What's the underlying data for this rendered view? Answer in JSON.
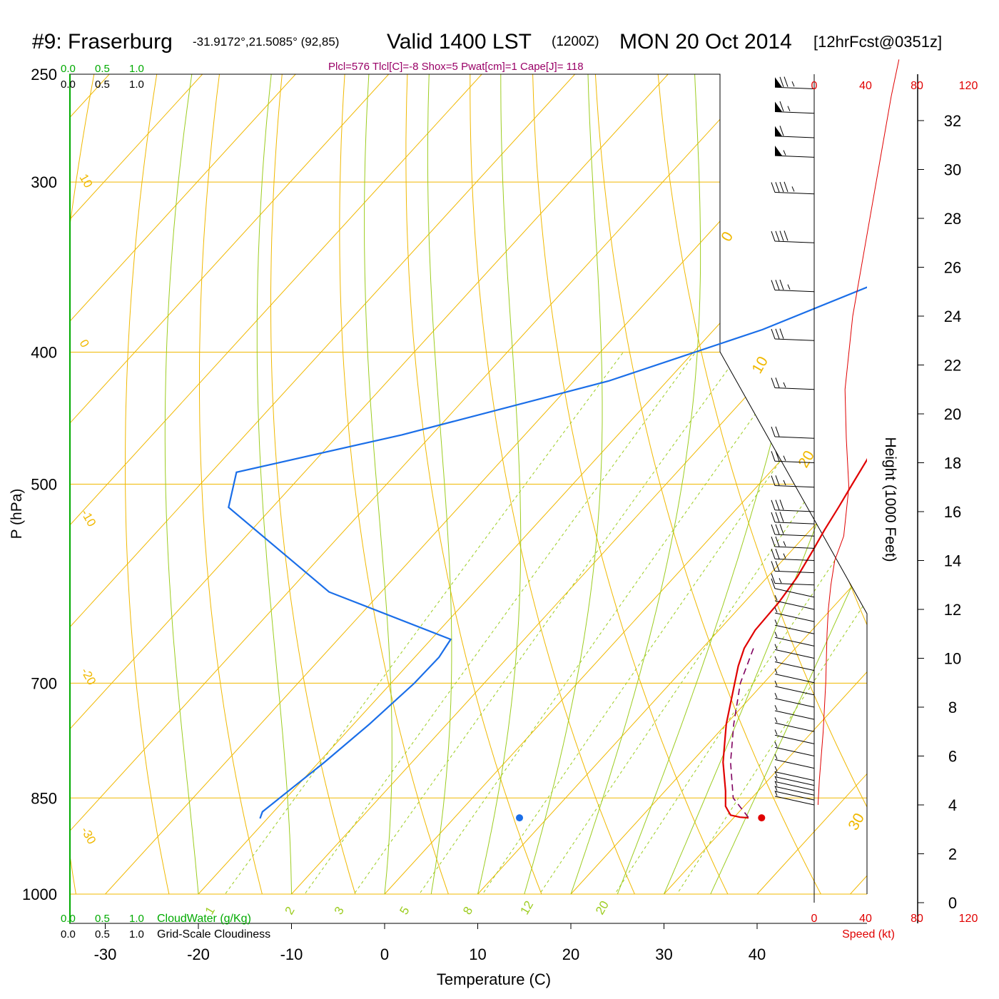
{
  "header": {
    "station": "#9: Fraserburg",
    "coords": "-31.9172°,21.5085° (92,85)",
    "valid": "Valid 1400 LST",
    "utc": "(1200Z)",
    "date": "MON 20 Oct 2014",
    "fcst": "[12hrFcst@0351z]",
    "indices": "Plcl=576 Tlcl[C]=-8 Shox=5 Pwat[cm]=1 Cape[J]= 118"
  },
  "colors": {
    "isobar": "#f0b800",
    "adiabat": "#9ccc1f",
    "mixing": "#9ccc1f",
    "temperature": "#e00000",
    "dewpoint": "#1a6ee8",
    "parcel": "#800060",
    "cloud_axis": "#00aa00",
    "speed": "#e00000",
    "indices": "#990066"
  },
  "chart_data": {
    "type": "line",
    "title": "#9: Fraserburg",
    "xlabel": "Temperature (C)",
    "ylabel": "P (hPa)",
    "xlim": [
      -34,
      46
    ],
    "ylim": [
      1000,
      250
    ],
    "y_scale": "log",
    "x_ticks": [
      "-30",
      "-20",
      "-10",
      "0",
      "10",
      "20",
      "30",
      "40"
    ],
    "pressure_levels": [
      "250",
      "300",
      "400",
      "500",
      "700",
      "850",
      "1000"
    ],
    "series": [
      {
        "role": "temperature",
        "points": [
          [
            250,
            -1.9
          ],
          [
            262,
            -1.8
          ],
          [
            275,
            -1.6
          ],
          [
            290,
            -1.0
          ],
          [
            300,
            -0.5
          ],
          [
            320,
            0.6
          ],
          [
            340,
            1.7
          ],
          [
            360,
            2.8
          ],
          [
            380,
            3.8
          ],
          [
            400,
            4.8
          ],
          [
            420,
            5.9
          ],
          [
            440,
            7.0
          ],
          [
            460,
            8.1
          ],
          [
            480,
            9.2
          ],
          [
            500,
            10.0
          ],
          [
            520,
            10.8
          ],
          [
            540,
            11.5
          ],
          [
            560,
            12.3
          ],
          [
            585,
            13.2
          ],
          [
            610,
            13.7
          ],
          [
            640,
            13.9
          ],
          [
            660,
            14.5
          ],
          [
            680,
            15.6
          ],
          [
            700,
            16.9
          ],
          [
            750,
            20.0
          ],
          [
            800,
            23.4
          ],
          [
            840,
            26.5
          ],
          [
            862,
            28.0
          ],
          [
            875,
            29.4
          ],
          [
            878,
            30.6
          ],
          [
            879,
            31.6
          ]
        ]
      },
      {
        "role": "dewpoint",
        "points": [
          [
            250,
            -10.3
          ],
          [
            275,
            -10.0
          ],
          [
            300,
            -9.8
          ],
          [
            330,
            -5.4
          ],
          [
            355,
            -6.8
          ],
          [
            385,
            -14.8
          ],
          [
            420,
            -26.3
          ],
          [
            460,
            -43.2
          ],
          [
            490,
            -57.3
          ],
          [
            520,
            -54.7
          ],
          [
            600,
            -35.6
          ],
          [
            650,
            -17.9
          ],
          [
            670,
            -17.4
          ],
          [
            700,
            -17.5
          ],
          [
            750,
            -18.3
          ],
          [
            800,
            -19.4
          ],
          [
            850,
            -20.7
          ],
          [
            870,
            -21.2
          ],
          [
            880,
            -20.8
          ]
        ]
      },
      {
        "role": "parcel",
        "points": [
          [
            660,
            15.5
          ],
          [
            700,
            17.5
          ],
          [
            750,
            20.8
          ],
          [
            800,
            24.2
          ],
          [
            850,
            28.0
          ],
          [
            878,
            31.5
          ]
        ]
      }
    ],
    "surface_points": [
      {
        "role": "temperature",
        "p": 879,
        "t": 33.0
      },
      {
        "role": "dewpoint",
        "p": 879,
        "t": 7.0
      }
    ],
    "isotherm_labels": [
      "-30",
      "-20",
      "-10",
      "0",
      "10",
      "20",
      "30"
    ],
    "mixing_ratio_labels": [
      "1",
      "2",
      "3",
      "5",
      "8",
      "12",
      "20"
    ]
  },
  "wind": {
    "height_label": "Height (1000 Feet)",
    "height_ticks": [
      "0",
      "2",
      "4",
      "6",
      "8",
      "10",
      "12",
      "14",
      "16",
      "18",
      "20",
      "22",
      "24",
      "26",
      "28",
      "30",
      "32"
    ],
    "speed_ticks": [
      "0",
      "40",
      "80",
      "120"
    ],
    "speed_label": "Speed (kt)",
    "barb_heights_kft": [
      4.0,
      4.2,
      4.4,
      4.6,
      4.8,
      5.0,
      5.5,
      6.0,
      6.5,
      7.0,
      7.5,
      8.0,
      8.5,
      9.0,
      9.5,
      10.0,
      10.5,
      11.0,
      11.5,
      12.0,
      12.5,
      13.0,
      13.5,
      14.0,
      14.5,
      15.0,
      15.5,
      16.0,
      17.0,
      18.0,
      19.0,
      21.0,
      23.0,
      25.0,
      27.0,
      29.0,
      30.5,
      31.3,
      32.3,
      33.3
    ],
    "barb_speeds_kt": [
      5,
      5,
      5,
      5,
      5,
      5,
      5,
      5,
      5,
      5,
      5,
      5,
      5,
      5,
      5,
      5,
      5,
      5,
      5,
      5,
      10,
      15,
      20,
      25,
      25,
      30,
      30,
      30,
      25,
      25,
      20,
      25,
      30,
      35,
      40,
      45,
      55,
      60,
      65,
      75
    ],
    "speed_profile": [
      [
        4.0,
        3
      ],
      [
        5,
        4
      ],
      [
        7,
        7
      ],
      [
        9,
        9
      ],
      [
        11,
        10
      ],
      [
        12,
        11
      ],
      [
        13,
        13
      ],
      [
        14,
        16
      ],
      [
        15,
        23
      ],
      [
        17,
        27
      ],
      [
        19,
        25
      ],
      [
        21,
        24
      ],
      [
        24,
        30
      ],
      [
        27,
        40
      ],
      [
        30,
        50
      ],
      [
        33,
        60
      ],
      [
        34.5,
        66
      ]
    ]
  },
  "cloud_axis": {
    "top_green": [
      "0.0",
      "0.5",
      "1.0"
    ],
    "top_black": [
      "0.0",
      "0.5",
      "1.0"
    ],
    "bottom_green": [
      "0.0",
      "0.5",
      "1.0"
    ],
    "bottom_green_label": "CloudWater (g/Kg)",
    "bottom_black": [
      "0.0",
      "0.5",
      "1.0"
    ],
    "bottom_black_label": "Grid-Scale Cloudiness"
  }
}
